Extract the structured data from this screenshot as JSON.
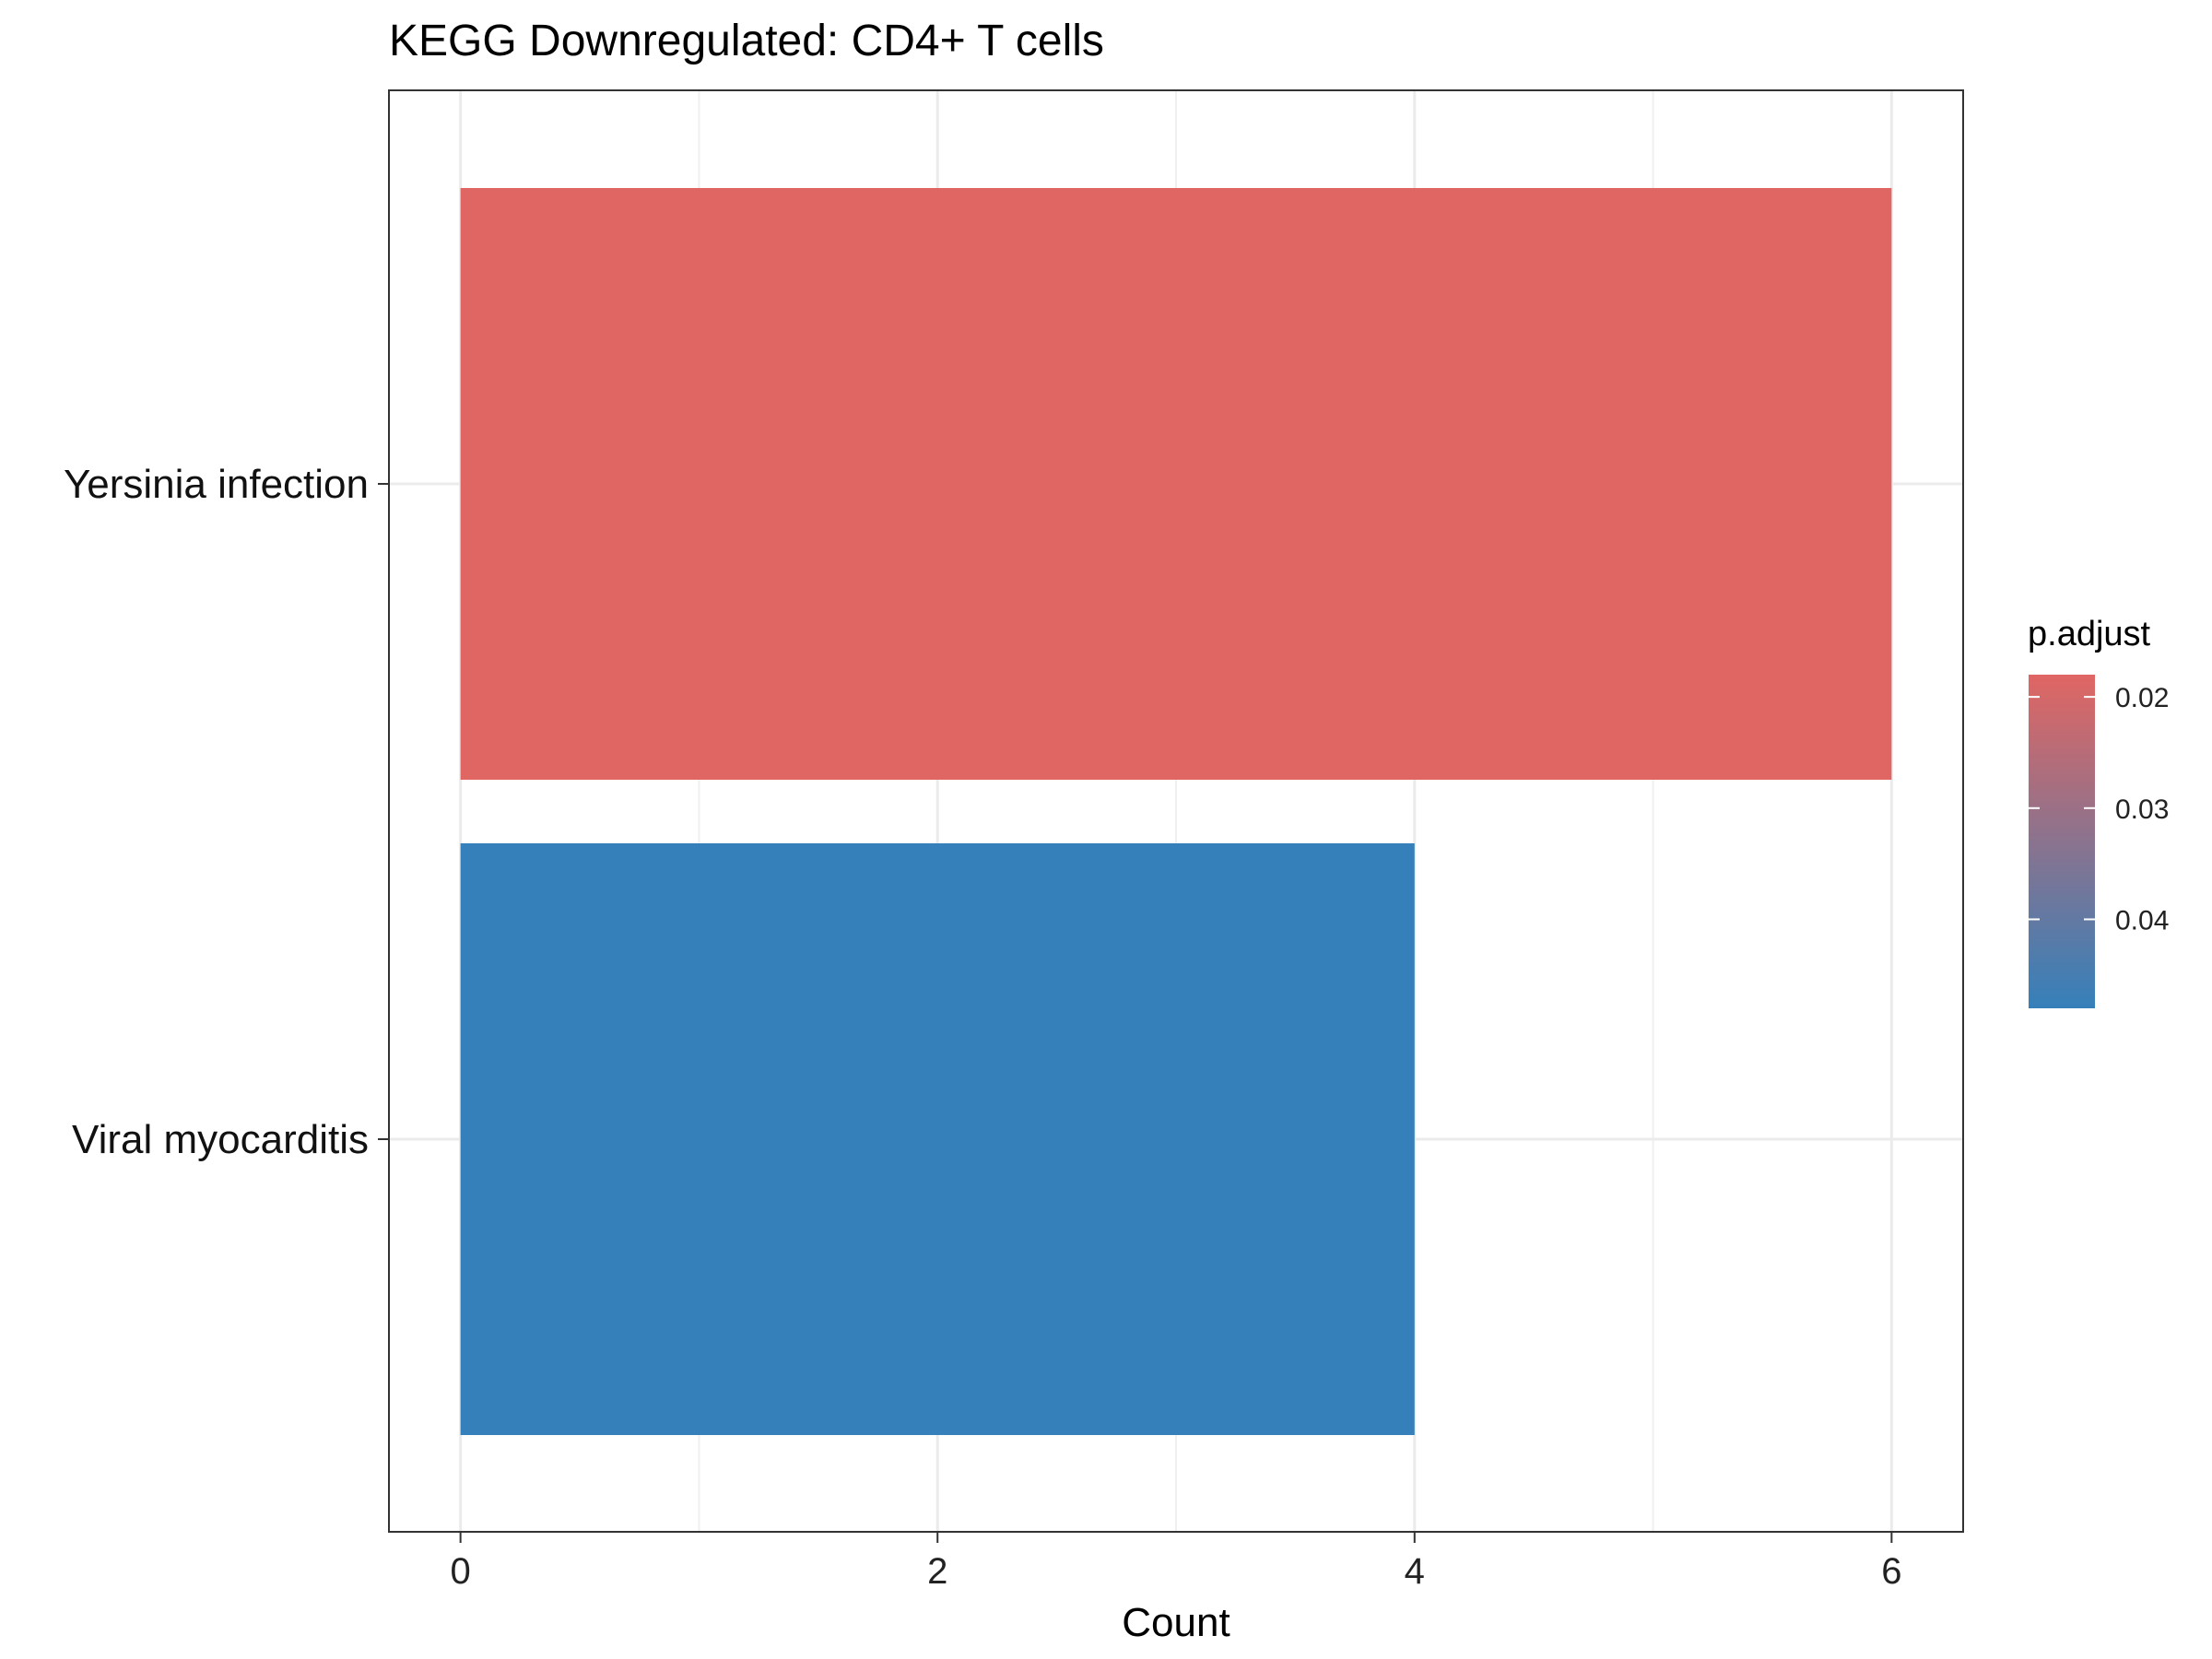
{
  "chart_data": {
    "type": "bar",
    "orientation": "horizontal",
    "title": "KEGG Downregulated: CD4+ T cells",
    "xlabel": "Count",
    "ylabel": "",
    "xlim": [
      -0.3,
      6.3
    ],
    "x_ticks": [
      0,
      2,
      4,
      6
    ],
    "grid": true,
    "categories": [
      "Yersinia infection",
      "Viral myocarditis"
    ],
    "values": [
      6,
      4
    ],
    "p_adjust": [
      0.018,
      0.048
    ],
    "bar_colors": [
      "#E06663",
      "#3580BA"
    ],
    "legend": {
      "title": "p.adjust",
      "position": "right",
      "range": [
        0.018,
        0.048
      ],
      "ticks": [
        0.02,
        0.03,
        0.04
      ],
      "tick_labels": [
        "0.02",
        "0.03",
        "0.04"
      ],
      "color_low": "#E06663",
      "color_high": "#3580BA"
    }
  }
}
